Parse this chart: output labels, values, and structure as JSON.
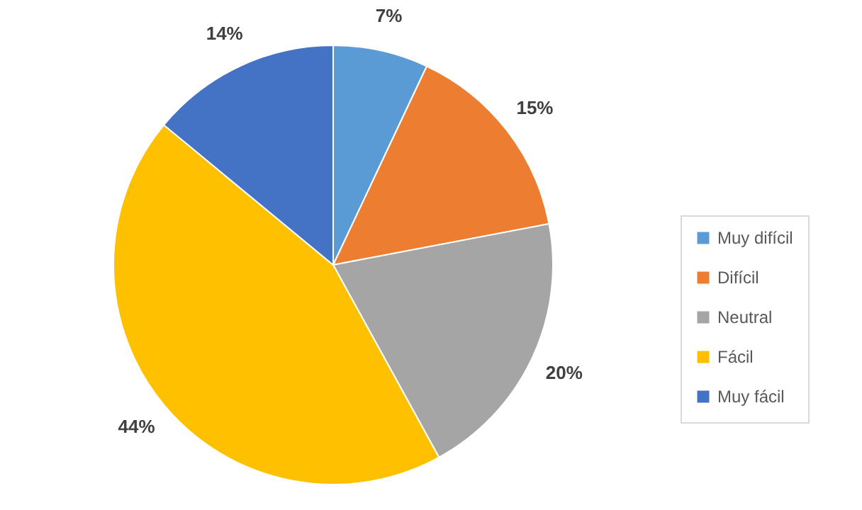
{
  "chart_data": {
    "type": "pie",
    "categories": [
      "Muy difícil",
      "Difícil",
      "Neutral",
      "Fácil",
      "Muy fácil"
    ],
    "values": [
      7,
      15,
      20,
      44,
      14
    ],
    "colors": [
      "#5b9bd5",
      "#ed7d31",
      "#a5a5a5",
      "#ffc000",
      "#4472c4"
    ],
    "value_labels": [
      "7%",
      "15%",
      "20%",
      "44%",
      "14%"
    ],
    "legend": "right"
  }
}
